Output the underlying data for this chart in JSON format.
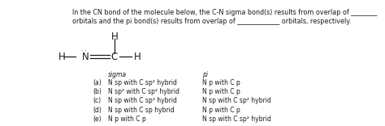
{
  "title_line1": "In the CN bond of the molecule below, the C-N sigma bond(s) results from overlap of ________",
  "title_line2": "orbitals and the pi bond(s) results from overlap of _____________ orbitals, respectively.",
  "sigma_header": "sigma",
  "pi_header": "pi",
  "rows": [
    {
      "label": "(a)",
      "sigma": "N sp with C sp² hybrid",
      "pi": "N p with C p"
    },
    {
      "label": "(b)",
      "sigma": "N sp² with C sp² hybrid",
      "pi": "N p with C p"
    },
    {
      "label": "(c)",
      "sigma": "N sp with C sp³ hybrid",
      "pi": "N sp with C sp² hybrid"
    },
    {
      "label": "(d)",
      "sigma": "N sp with C sp hybrid",
      "pi": "N p with C p"
    },
    {
      "label": "(e)",
      "sigma": "N p with C p",
      "pi": "N sp with C sp² hybrid"
    }
  ],
  "bg_color": "#ffffff",
  "text_color": "#1a1a1a",
  "font_size_title": 5.8,
  "font_size_body": 5.5,
  "font_size_molecule": 8.5
}
